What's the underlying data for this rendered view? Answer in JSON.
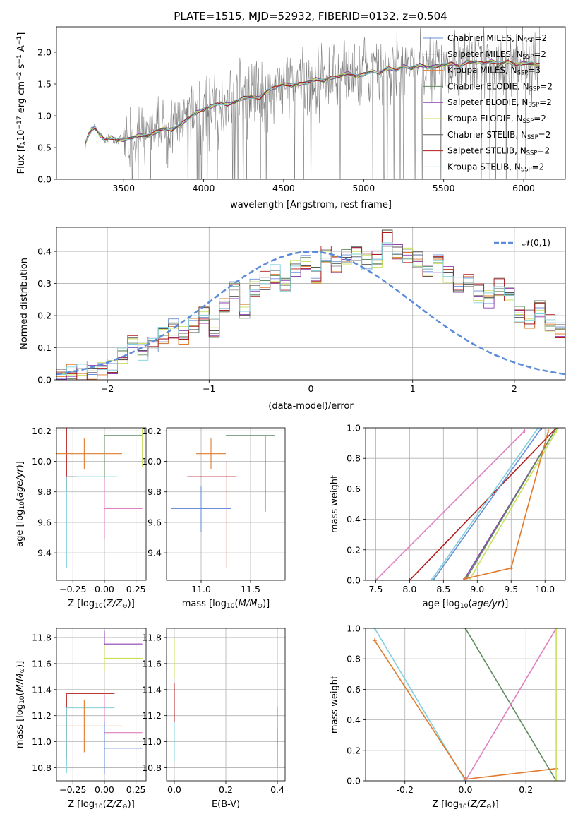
{
  "title": "PLATE=1515, MJD=52932, FIBERID=0132, z=0.504",
  "colors": {
    "Chabrier MILES": "#6a8fd8",
    "Salpeter MILES": "#9b9b9b",
    "Kroupa MILES": "#e07b2d",
    "Chabrier ELODIE": "#5e8c5e",
    "Salpeter ELODIE": "#8e3fb0",
    "Kroupa ELODIE": "#c8e05a",
    "Chabrier STELIB": "#555555",
    "Salpeter STELIB": "#b01c1c",
    "Kroupa STELIB": "#7fd0dc",
    "pink": "#e07fc0",
    "data": "#808080",
    "gaussian": "#5b8bd9"
  },
  "chart_data": [
    {
      "type": "line",
      "title": "PLATE=1515, MJD=52932, FIBERID=0132, z=0.504",
      "xlabel": "wavelength [Angstrom, rest frame]",
      "ylabel": "Flux [f_λ 10^-17 erg cm^-2 s^-1 A^-1]",
      "xlim": [
        3080,
        6260
      ],
      "ylim": [
        0,
        2.4
      ],
      "xticks": [
        3500,
        4000,
        4500,
        5000,
        5500,
        6000
      ],
      "yticks": [
        0.0,
        0.5,
        1.0,
        1.5,
        2.0
      ],
      "legend_position": "top-right",
      "legend": [
        {
          "label": "Chabrier MILES, N",
          "sub": "SSP",
          "tail": "=2"
        },
        {
          "label": "Salpeter MILES, N",
          "sub": "SSP",
          "tail": "=2"
        },
        {
          "label": "Kroupa MILES, N",
          "sub": "SSP",
          "tail": "=3"
        },
        {
          "label": "Chabrier ELODIE, N",
          "sub": "SSP",
          "tail": "=2"
        },
        {
          "label": "Salpeter ELODIE, N",
          "sub": "SSP",
          "tail": "=2"
        },
        {
          "label": "Kroupa ELODIE, N",
          "sub": "SSP",
          "tail": "=2"
        },
        {
          "label": "Chabrier STELIB, N",
          "sub": "SSP",
          "tail": "=2"
        },
        {
          "label": "Salpeter STELIB, N",
          "sub": "SSP",
          "tail": "=2"
        },
        {
          "label": "Kroupa STELIB, N",
          "sub": "SSP",
          "tail": "=2"
        }
      ],
      "model_x": [
        3260,
        3280,
        3300,
        3320,
        3350,
        3380,
        3420,
        3460,
        3500,
        3550,
        3600,
        3650,
        3700,
        3750,
        3800,
        3850,
        3900,
        3950,
        4000,
        4050,
        4100,
        4150,
        4200,
        4250,
        4300,
        4350,
        4400,
        4450,
        4500,
        4550,
        4600,
        4650,
        4700,
        4750,
        4800,
        4850,
        4900,
        4950,
        5000,
        5050,
        5100,
        5150,
        5200,
        5250,
        5300,
        5350,
        5400,
        5450,
        5500,
        5550,
        5600,
        5650,
        5700,
        5750,
        5800,
        5850,
        5900,
        5950,
        6000,
        6050,
        6100
      ],
      "model_y": [
        0.56,
        0.7,
        0.78,
        0.82,
        0.7,
        0.62,
        0.66,
        0.62,
        0.62,
        0.65,
        0.7,
        0.68,
        0.74,
        0.8,
        0.78,
        0.85,
        0.95,
        1.05,
        1.1,
        1.15,
        1.2,
        1.18,
        1.22,
        1.28,
        1.3,
        1.28,
        1.4,
        1.45,
        1.5,
        1.48,
        1.5,
        1.52,
        1.58,
        1.55,
        1.6,
        1.62,
        1.68,
        1.62,
        1.65,
        1.7,
        1.68,
        1.75,
        1.72,
        1.78,
        1.75,
        1.8,
        1.76,
        1.78,
        1.8,
        1.82,
        1.78,
        1.85,
        1.84,
        1.83,
        1.86,
        1.82,
        1.85,
        1.8,
        1.83,
        1.82,
        1.8
      ]
    },
    {
      "type": "bar",
      "xlabel": "(data-model)/error",
      "ylabel": "Normed distribution",
      "xlim": [
        -2.5,
        2.5
      ],
      "ylim": [
        0,
        0.475
      ],
      "xticks": [
        -2,
        -1,
        0,
        1,
        2
      ],
      "yticks": [
        0.0,
        0.1,
        0.2,
        0.3,
        0.4
      ],
      "grid": true,
      "legend_position": "top-right",
      "gaussian_label": "𝒩(0,1)",
      "bin_width": 0.1,
      "histogram_example": [
        0.01,
        0.02,
        0.02,
        0.03,
        0.03,
        0.04,
        0.07,
        0.12,
        0.09,
        0.11,
        0.14,
        0.16,
        0.14,
        0.17,
        0.2,
        0.16,
        0.24,
        0.28,
        0.22,
        0.29,
        0.31,
        0.33,
        0.3,
        0.35,
        0.37,
        0.33,
        0.39,
        0.36,
        0.38,
        0.4,
        0.37,
        0.38,
        0.44,
        0.4,
        0.39,
        0.37,
        0.34,
        0.36,
        0.33,
        0.3,
        0.31,
        0.27,
        0.25,
        0.29,
        0.26,
        0.2,
        0.19,
        0.22,
        0.18,
        0.16,
        0.15,
        0.12,
        0.1,
        0.11,
        0.09,
        0.06,
        0.05,
        0.04,
        0.03,
        0.03
      ]
    },
    {
      "type": "scatter",
      "xlabel": "Z [log10(Z/Z⊙)]",
      "ylabel": "age [log10(age/yr)]",
      "xlim": [
        -0.38,
        0.33
      ],
      "ylim": [
        9.22,
        10.22
      ],
      "xticks": [
        -0.25,
        0.0,
        0.25
      ],
      "yticks": [
        9.4,
        9.6,
        9.8,
        10.0,
        10.2
      ],
      "points": [
        {
          "x": 0.0,
          "y": 10.17,
          "xerr": [
            0.0,
            0.3
          ],
          "yerr": [
            0.3,
            0
          ],
          "color": "Chabrier ELODIE"
        },
        {
          "x": -0.3,
          "y": 9.9,
          "xerr": [
            0,
            0.08
          ],
          "yerr": [
            0.1,
            0.6
          ],
          "color": "Salpeter STELIB"
        },
        {
          "x": -0.3,
          "y": 9.9,
          "xerr": [
            0,
            0.4
          ],
          "yerr": [
            0.6,
            0.0
          ],
          "color": "Kroupa STELIB"
        },
        {
          "x": -0.16,
          "y": 10.05,
          "xerr": [
            0.25,
            0.3
          ],
          "yerr": [
            0.1,
            0.1
          ],
          "color": "Kroupa MILES"
        },
        {
          "x": 0.0,
          "y": 9.69,
          "xerr": [
            0,
            0.3
          ],
          "yerr": [
            0.2,
            0.2
          ],
          "color": "pink"
        },
        {
          "x": 0.3,
          "y": 10.16,
          "xerr": [
            0,
            0
          ],
          "yerr": [
            0.2,
            0.7
          ],
          "color": "Kroupa ELODIE"
        }
      ]
    },
    {
      "type": "scatter",
      "xlabel": "mass [log10(M/M⊙)]",
      "ylabel": "",
      "xlim": [
        10.65,
        11.85
      ],
      "ylim": [
        9.22,
        10.22
      ],
      "xticks": [
        11.0,
        11.5
      ],
      "yticks": [
        9.4,
        9.6,
        9.8,
        10.0,
        10.2
      ],
      "points": [
        {
          "x": 11.65,
          "y": 10.17,
          "xerr": [
            0.4,
            0.1
          ],
          "yerr": [
            0.5,
            0.0
          ],
          "color": "Chabrier ELODIE"
        },
        {
          "x": 11.26,
          "y": 9.9,
          "xerr": [
            0.4,
            0.1
          ],
          "yerr": [
            0.6,
            0.1
          ],
          "color": "Salpeter STELIB"
        },
        {
          "x": 11.1,
          "y": 10.05,
          "xerr": [
            0.15,
            0.15
          ],
          "yerr": [
            0.1,
            0.1
          ],
          "color": "Kroupa MILES"
        },
        {
          "x": 11.0,
          "y": 9.69,
          "xerr": [
            0.3,
            0.3
          ],
          "yerr": [
            0.15,
            0.15
          ],
          "color": "Chabrier MILES"
        }
      ]
    },
    {
      "type": "line",
      "xlabel": "age [log10(age/yr)]",
      "ylabel": "mass weight",
      "xlim": [
        7.35,
        10.3
      ],
      "ylim": [
        0,
        1.0
      ],
      "xticks": [
        7.5,
        8.0,
        8.5,
        9.0,
        9.5,
        10.0
      ],
      "yticks": [
        0.0,
        0.2,
        0.4,
        0.6,
        0.8,
        1.0
      ],
      "series": [
        {
          "color": "pink",
          "x": [
            7.5,
            9.7
          ],
          "y": [
            0.0,
            0.98
          ]
        },
        {
          "color": "Salpeter STELIB",
          "x": [
            8.0,
            10.17
          ],
          "y": [
            0.0,
            1.0
          ]
        },
        {
          "color": "Kroupa STELIB",
          "x": [
            8.32,
            9.9
          ],
          "y": [
            0.0,
            1.0
          ]
        },
        {
          "color": "Chabrier MILES",
          "x": [
            8.35,
            9.95
          ],
          "y": [
            0.0,
            1.0
          ]
        },
        {
          "color": "Salpeter ELODIE",
          "x": [
            8.8,
            10.17
          ],
          "y": [
            0.0,
            1.0
          ]
        },
        {
          "color": "Chabrier ELODIE",
          "x": [
            8.85,
            10.17
          ],
          "y": [
            0.02,
            1.0
          ]
        },
        {
          "color": "Kroupa ELODIE",
          "x": [
            8.88,
            10.17
          ],
          "y": [
            0.0,
            0.98
          ]
        },
        {
          "color": "Kroupa MILES",
          "x": [
            8.82,
            9.5,
            10.05
          ],
          "y": [
            0.01,
            0.08,
            0.98
          ]
        }
      ]
    },
    {
      "type": "scatter",
      "xlabel": "Z [log10(Z/Z⊙)]",
      "ylabel": "mass [log10(M/M⊙)]",
      "xlim": [
        -0.38,
        0.33
      ],
      "ylim": [
        10.7,
        11.87
      ],
      "xticks": [
        -0.25,
        0.0,
        0.25
      ],
      "yticks": [
        10.8,
        11.0,
        11.2,
        11.4,
        11.6,
        11.8
      ],
      "points": [
        {
          "x": 0.0,
          "y": 11.75,
          "xerr": [
            0,
            0.3
          ],
          "yerr": [
            0.1,
            0.1
          ],
          "color": "Salpeter ELODIE"
        },
        {
          "x": 0.0,
          "y": 11.64,
          "xerr": [
            0,
            0.3
          ],
          "yerr": [
            0.1,
            0.1
          ],
          "color": "Kroupa ELODIE"
        },
        {
          "x": -0.3,
          "y": 11.37,
          "xerr": [
            0,
            0.38
          ],
          "yerr": [
            0.5,
            0
          ],
          "color": "Salpeter STELIB"
        },
        {
          "x": -0.3,
          "y": 11.26,
          "xerr": [
            0,
            0.38
          ],
          "yerr": [
            0.5,
            0
          ],
          "color": "Kroupa STELIB"
        },
        {
          "x": -0.16,
          "y": 11.12,
          "xerr": [
            0.25,
            0.3
          ],
          "yerr": [
            0.2,
            0.2
          ],
          "color": "Kroupa MILES"
        },
        {
          "x": 0.0,
          "y": 11.07,
          "xerr": [
            0,
            0.3
          ],
          "yerr": [
            0.3,
            0.3
          ],
          "color": "pink"
        },
        {
          "x": 0.0,
          "y": 10.95,
          "xerr": [
            0,
            0.3
          ],
          "yerr": [
            0.2,
            0.2
          ],
          "color": "Chabrier MILES"
        }
      ]
    },
    {
      "type": "scatter",
      "xlabel": "E(B-V)",
      "ylabel": "",
      "xlim": [
        -0.03,
        0.43
      ],
      "ylim": [
        10.7,
        11.87
      ],
      "xticks": [
        0.0,
        0.2,
        0.4
      ],
      "yticks": [
        10.8,
        11.0,
        11.2,
        11.4,
        11.6,
        11.8
      ],
      "points": [
        {
          "x": 0.0,
          "y": 11.64,
          "color": "Kroupa ELODIE"
        },
        {
          "x": 0.0,
          "y": 11.3,
          "color": "Salpeter STELIB"
        },
        {
          "x": 0.0,
          "y": 11.0,
          "color": "Kroupa STELIB"
        },
        {
          "x": 0.4,
          "y": 11.12,
          "color": "Kroupa MILES"
        },
        {
          "x": 0.4,
          "y": 10.95,
          "color": "Chabrier MILES"
        }
      ]
    },
    {
      "type": "line",
      "xlabel": "Z [log10(Z/Z⊙)]",
      "ylabel": "mass weight",
      "xlim": [
        -0.33,
        0.33
      ],
      "ylim": [
        0,
        1.0
      ],
      "xticks": [
        -0.2,
        0.0,
        0.2
      ],
      "yticks": [
        0.0,
        0.2,
        0.4,
        0.6,
        0.8,
        1.0
      ],
      "series": [
        {
          "color": "Kroupa STELIB",
          "x": [
            -0.3,
            0.0
          ],
          "y": [
            1.0,
            0.0
          ]
        },
        {
          "color": "Kroupa MILES",
          "x": [
            -0.3,
            0.0,
            0.3
          ],
          "y": [
            0.92,
            0.01,
            0.08
          ]
        },
        {
          "color": "Chabrier ELODIE",
          "x": [
            0.0,
            0.3
          ],
          "y": [
            1.0,
            0.0
          ]
        },
        {
          "color": "pink",
          "x": [
            0.0,
            0.3
          ],
          "y": [
            0.0,
            1.0
          ]
        },
        {
          "color": "Kroupa ELODIE",
          "x": [
            0.3,
            0.3
          ],
          "y": [
            0.0,
            1.0
          ]
        }
      ]
    }
  ],
  "panels": {
    "spectrum": {
      "title": "PLATE=1515, MJD=52932, FIBERID=0132, z=0.504",
      "xlabel": "wavelength [Angstrom, rest frame]",
      "ylabel": "Flux [f_λ 10^-17 erg cm^-2 s^-1 A^-1]"
    },
    "residuals": {
      "xlabel": "(data-model)/error",
      "ylabel": "Normed distribution",
      "legend": "𝒩(0,1)"
    },
    "z_age": {
      "xlabel": "Z [log10(Z/Z⊙)]",
      "ylabel": "age [log10(age/yr)]"
    },
    "mass_age": {
      "xlabel": "mass [log10(M/M⊙)]"
    },
    "age_weight": {
      "xlabel": "age [log10(age/yr)]",
      "ylabel": "mass weight"
    },
    "z_mass": {
      "xlabel": "Z [log10(Z/Z⊙)]",
      "ylabel": "mass [log10(M/M⊙)]"
    },
    "ebv_mass": {
      "xlabel": "E(B-V)"
    },
    "z_weight": {
      "xlabel": "Z [log10(Z/Z⊙)]",
      "ylabel": "mass weight"
    }
  }
}
